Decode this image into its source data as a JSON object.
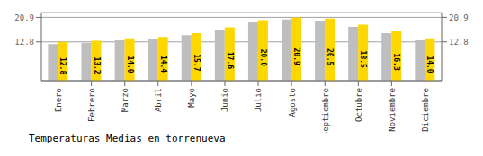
{
  "chart_data": {
    "type": "bar",
    "title": "Temperaturas Medias en torrenueva",
    "categories": [
      "Enero",
      "Febrero",
      "Marzo",
      "Abril",
      "Mayo",
      "Junio",
      "Julio",
      "Agosto",
      "Septiembre",
      "Octubre",
      "Noviembre",
      "Diciembre"
    ],
    "series": [
      {
        "color": "#BEBEBE",
        "values": [
          12.1,
          12.5,
          13.3,
          13.7,
          15.0,
          16.9,
          19.3,
          20.2,
          19.8,
          17.8,
          15.7,
          13.3
        ]
      },
      {
        "color": "#FFD700",
        "values": [
          12.8,
          13.2,
          14.0,
          14.4,
          15.7,
          17.6,
          20.0,
          20.9,
          20.5,
          18.5,
          16.3,
          14.0
        ],
        "value_labels": [
          "12.8",
          "13.2",
          "14.0",
          "14.4",
          "15.7",
          "17.6",
          "20.0",
          "20.9",
          "20.5",
          "18.5",
          "16.3",
          "14.0"
        ],
        "data_labels": true
      }
    ],
    "ylim": [
      0,
      22.5
    ],
    "yticks": [
      12.8,
      20.9
    ],
    "y2lim": [
      0,
      22.5
    ],
    "y2ticks": [
      12.8,
      20.9
    ],
    "grid": true
  }
}
